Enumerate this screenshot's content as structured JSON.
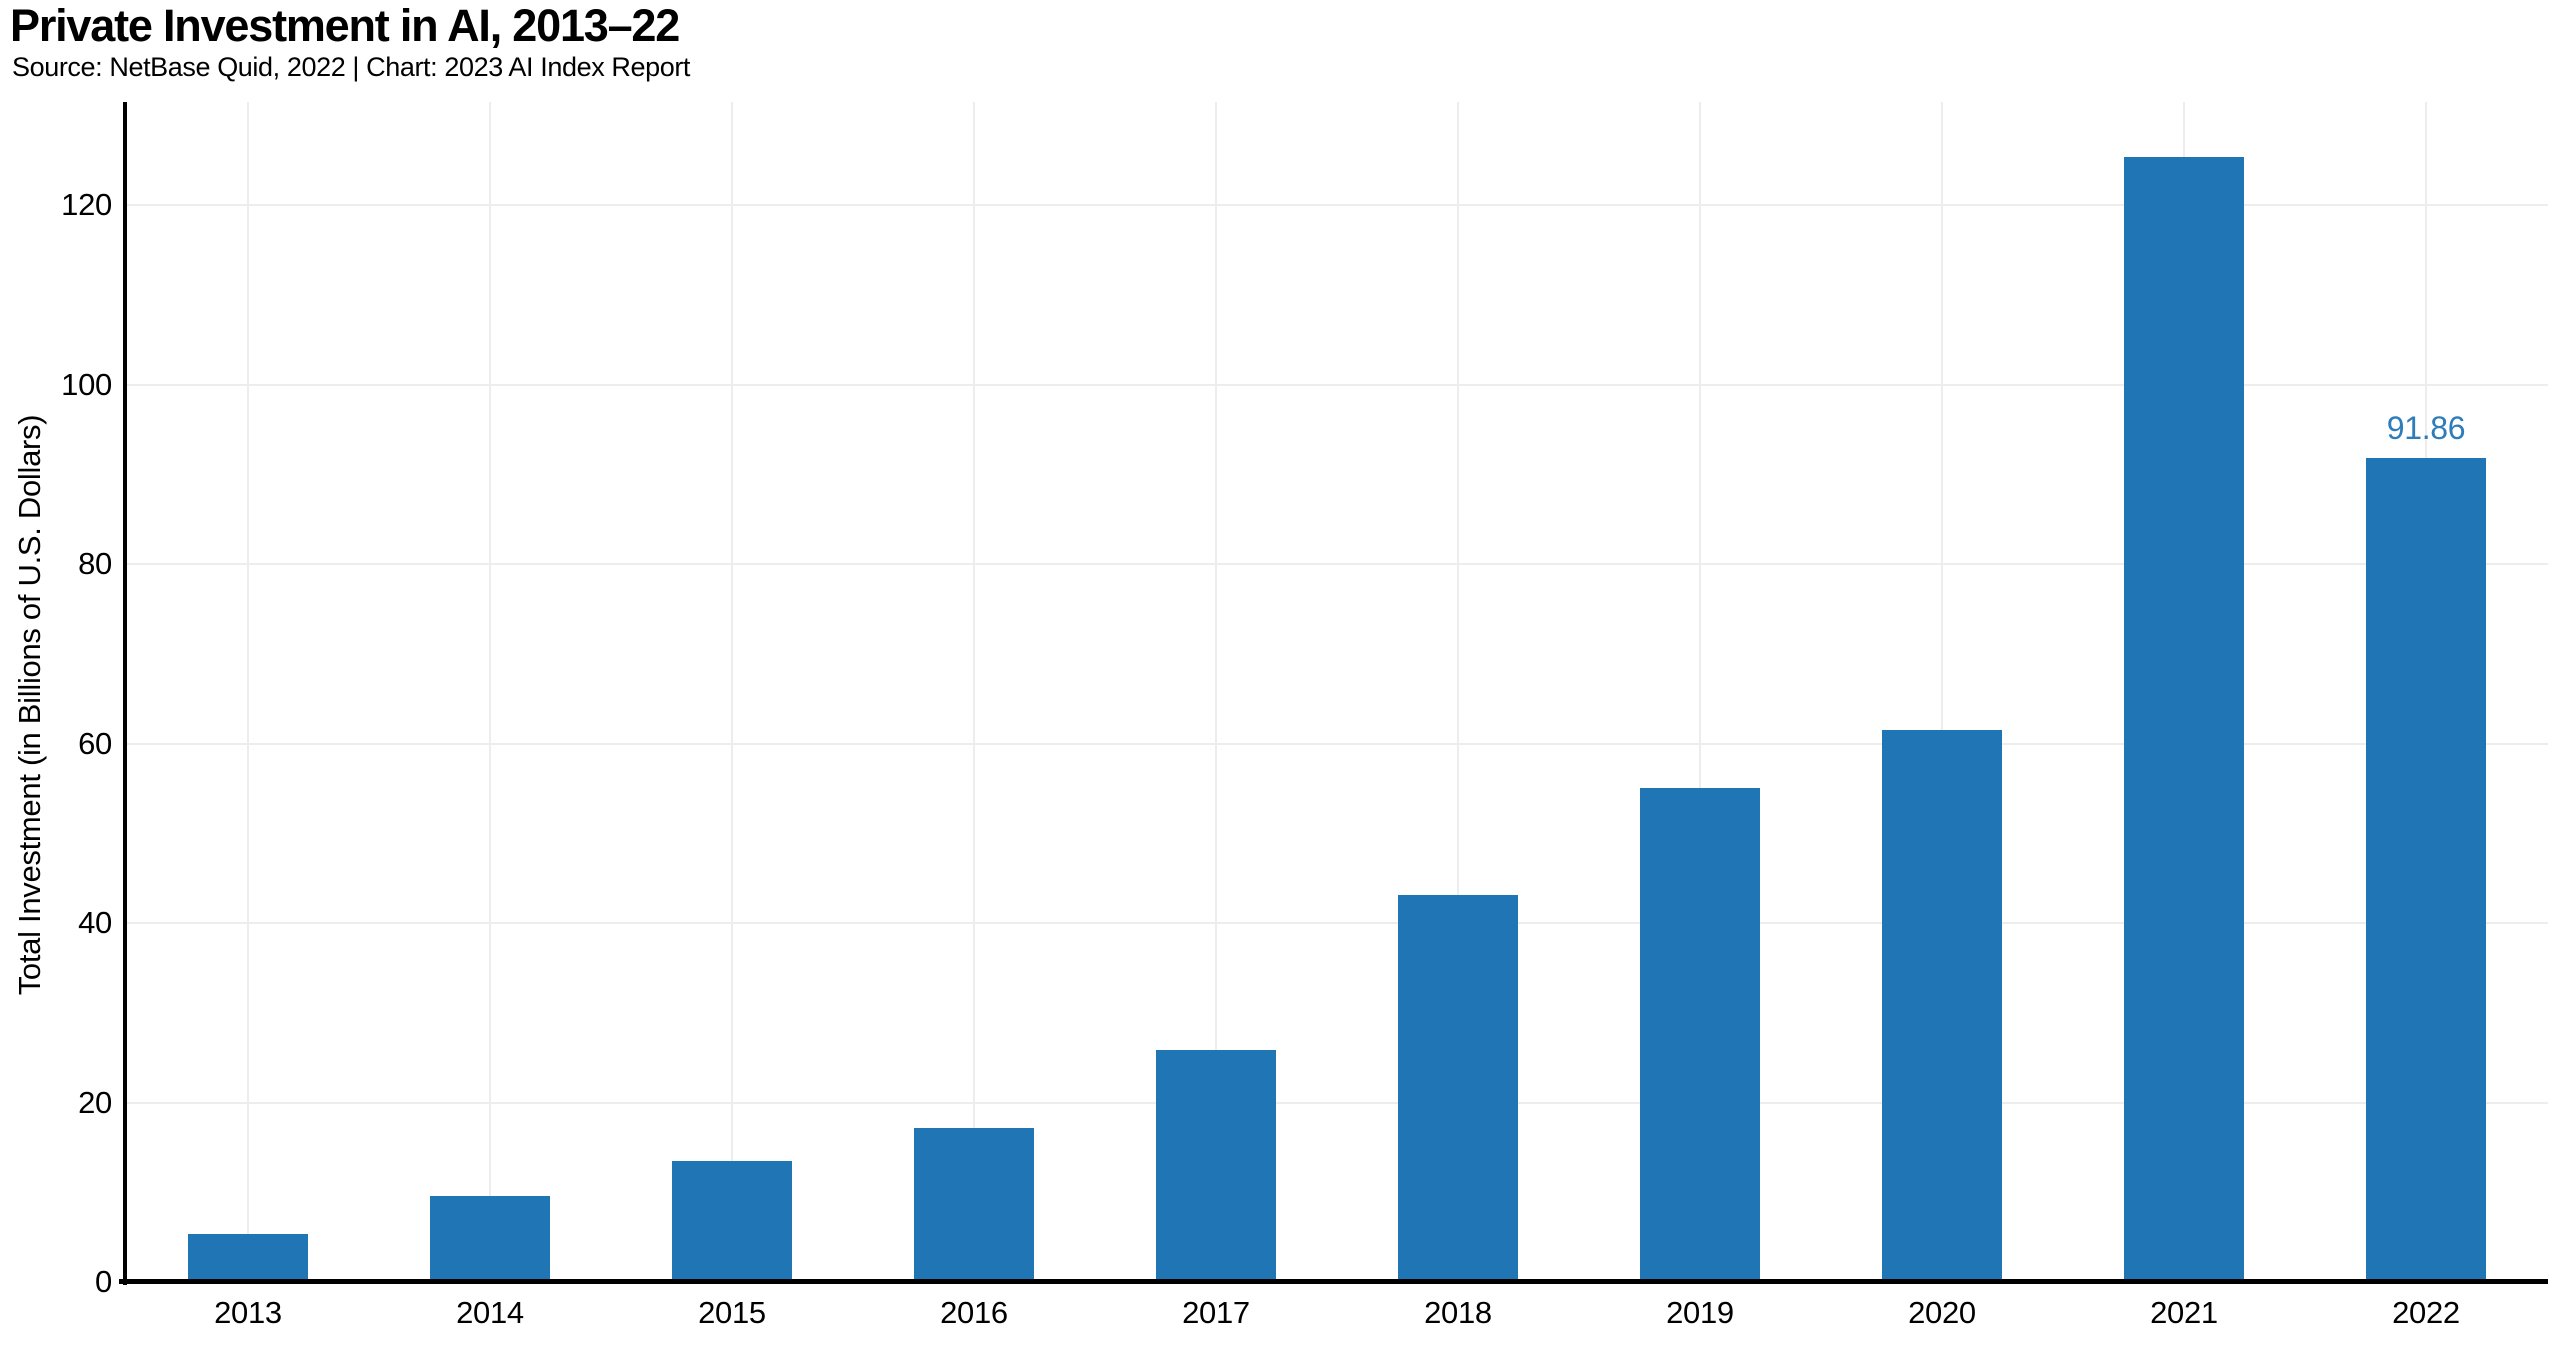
{
  "header": {
    "title": "Private Investment in AI, 2013–22",
    "subtitle": "Source: NetBase Quid, 2022 | Chart: 2023 AI Index Report"
  },
  "chart_data": {
    "type": "bar",
    "title": "Private Investment in AI, 2013–22",
    "source_line": "Source: NetBase Quid, 2022 | Chart: 2023 AI Index Report",
    "categories": [
      "2013",
      "2014",
      "2015",
      "2016",
      "2017",
      "2018",
      "2019",
      "2020",
      "2021",
      "2022"
    ],
    "values": [
      5.3,
      9.6,
      13.5,
      17.2,
      25.8,
      43.1,
      55.0,
      61.5,
      125.4,
      91.86
    ],
    "highlight_label": {
      "category": "2022",
      "text": "91.86"
    },
    "xlabel": "",
    "ylabel": "Total Investment (in Billions of U.S. Dollars)",
    "yticks": [
      0,
      20,
      40,
      60,
      80,
      100,
      120
    ],
    "ylim": [
      0,
      131.5
    ],
    "grid": "both-faint",
    "legend": "none",
    "colors": {
      "bar": "#2076b4",
      "value_label": "#2e7cba",
      "axis": "#000000",
      "gridline": "#ededed",
      "text": "#000000"
    }
  }
}
